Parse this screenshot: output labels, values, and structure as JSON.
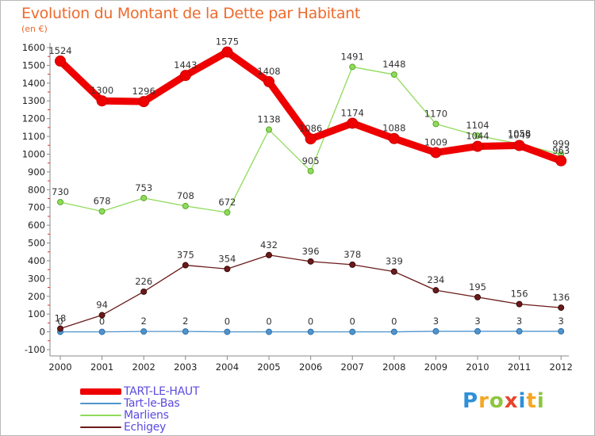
{
  "title": "Evolution du Montant de la Dette par Habitant",
  "unit": "(en €)",
  "logo": {
    "letters": [
      "P",
      "r",
      "o",
      "x",
      "i",
      "t",
      "i"
    ],
    "colors": [
      "#2f8fd8",
      "#f5a623",
      "#8dc63f",
      "#e8452c",
      "#2f8fd8",
      "#f5a623",
      "#8dc63f"
    ]
  },
  "chart_data": {
    "type": "line",
    "title": "Evolution du Montant de la Dette par Habitant",
    "ylabel": "(en €)",
    "xlabel": "",
    "categories": [
      "2000",
      "2001",
      "2002",
      "2003",
      "2004",
      "2005",
      "2006",
      "2007",
      "2008",
      "2009",
      "2010",
      "2011",
      "2012"
    ],
    "ylim": [
      -100,
      1600
    ],
    "yticks": [
      -100,
      0,
      100,
      200,
      300,
      400,
      500,
      600,
      700,
      800,
      900,
      1000,
      1100,
      1200,
      1300,
      1400,
      1500,
      1600
    ],
    "grid": false,
    "legend_position": "bottom-left",
    "series": [
      {
        "name": "TART-LE-HAUT",
        "color": "#ee0000",
        "values": [
          1524,
          1300,
          1296,
          1443,
          1575,
          1408,
          1086,
          1174,
          1088,
          1009,
          1044,
          1049,
          963
        ],
        "value_labels": [
          "1524",
          "1300",
          "1296",
          "1443",
          "1575",
          "1408",
          "1086",
          "1174",
          "1088",
          "1009",
          "1044",
          "1049",
          "963"
        ]
      },
      {
        "name": "Tart-le-Bas",
        "color": "#4f94cd",
        "values": [
          0,
          0,
          2,
          2,
          0,
          0,
          0,
          0,
          0,
          3,
          3,
          3,
          3
        ],
        "value_labels": [
          "0",
          "0",
          "2",
          "2",
          "0",
          "0",
          "0",
          "0",
          "0",
          "3",
          "3",
          "3",
          "3"
        ]
      },
      {
        "name": "Marliens",
        "color": "#8fdb5a",
        "values": [
          730,
          678,
          753,
          708,
          672,
          1138,
          905,
          1491,
          1448,
          1170,
          1104,
          1058,
          999
        ],
        "value_labels": [
          "730",
          "678",
          "753",
          "708",
          "672",
          "1138",
          "905",
          "1491",
          "1448",
          "1170",
          "1104",
          "1058",
          "999"
        ]
      },
      {
        "name": "Echigey",
        "color": "#6b1a1a",
        "values": [
          18,
          94,
          226,
          375,
          354,
          432,
          396,
          378,
          339,
          234,
          195,
          156,
          136
        ],
        "value_labels": [
          "18",
          "94",
          "226",
          "375",
          "354",
          "432",
          "396",
          "378",
          "339",
          "234",
          "195",
          "156",
          "136"
        ]
      }
    ]
  }
}
